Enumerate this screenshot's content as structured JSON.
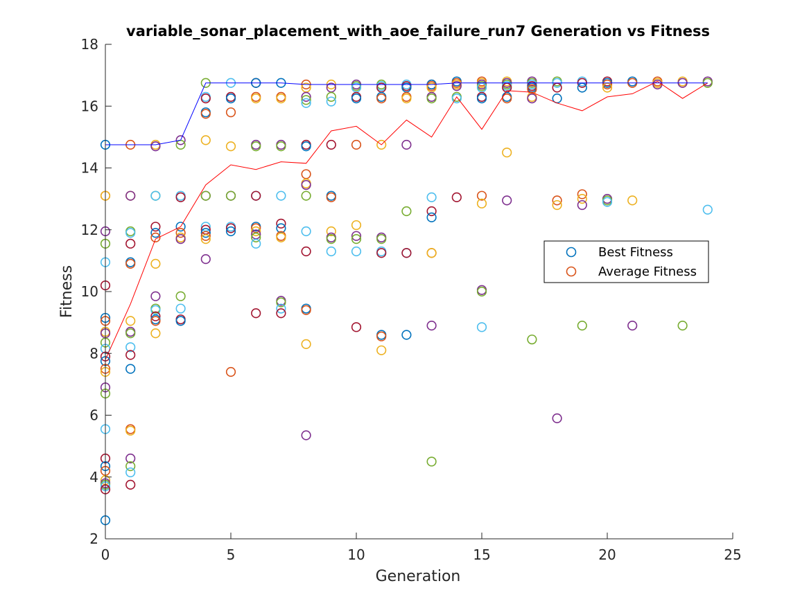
{
  "chart_data": {
    "type": "scatter",
    "title": "variable_sonar_placement_with_aoe_failure_run7 Generation vs Fitness",
    "xlabel": "Generation",
    "ylabel": "Fitness",
    "xlim": [
      0,
      25
    ],
    "ylim": [
      2,
      18
    ],
    "xticks": [
      "0",
      "5",
      "10",
      "15",
      "20",
      "25"
    ],
    "yticks": [
      "2",
      "4",
      "6",
      "8",
      "10",
      "12",
      "14",
      "16",
      "18"
    ],
    "grid": false,
    "legend_position": "right-middle",
    "legend": [
      {
        "label": "Best Fitness",
        "color": "#0072BD"
      },
      {
        "label": "Average Fitness",
        "color": "#D95319"
      }
    ],
    "palette": [
      "#0072BD",
      "#D95319",
      "#EDB120",
      "#7E2F8E",
      "#77AC30",
      "#4DBEEE",
      "#A2142F"
    ],
    "best_line": {
      "color": "#0000FF",
      "x": [
        0,
        1,
        2,
        3,
        4,
        5,
        6,
        7,
        8,
        9,
        10,
        11,
        12,
        13,
        14,
        15,
        16,
        17,
        18,
        19,
        20,
        21,
        22,
        23,
        24
      ],
      "y": [
        14.75,
        14.75,
        14.75,
        14.9,
        16.75,
        16.75,
        16.75,
        16.75,
        16.7,
        16.7,
        16.7,
        16.7,
        16.7,
        16.7,
        16.75,
        16.75,
        16.75,
        16.75,
        16.75,
        16.75,
        16.75,
        16.75,
        16.75,
        16.75,
        16.75
      ]
    },
    "average_line": {
      "color": "#FF0000",
      "x": [
        0,
        1,
        2,
        3,
        4,
        5,
        6,
        7,
        8,
        9,
        10,
        11,
        12,
        13,
        14,
        15,
        16,
        17,
        18,
        19,
        20,
        21,
        22,
        23,
        24
      ],
      "y": [
        7.8,
        9.6,
        11.7,
        12.1,
        13.45,
        14.1,
        13.95,
        14.2,
        14.15,
        15.2,
        15.35,
        14.75,
        15.55,
        15.0,
        16.3,
        15.25,
        16.5,
        16.45,
        16.1,
        15.85,
        16.3,
        16.4,
        16.8,
        16.25,
        16.75
      ]
    },
    "generations": [
      {
        "x": 0,
        "values": [
          14.75,
          13.1,
          13.1,
          11.95,
          11.55,
          10.95,
          10.2,
          9.15,
          9.05,
          8.7,
          8.65,
          8.35,
          8.15,
          7.9,
          7.75,
          7.5,
          7.4,
          6.9,
          6.7,
          5.55,
          4.6,
          4.35,
          4.2,
          3.9,
          3.8,
          3.75,
          3.7,
          3.6,
          2.6
        ]
      },
      {
        "x": 1,
        "values": [
          14.75,
          13.1,
          13.1,
          11.95,
          11.9,
          11.55,
          10.95,
          10.9,
          9.05,
          8.7,
          8.65,
          8.2,
          7.95,
          7.5,
          5.55,
          5.5,
          4.6,
          4.35,
          4.15,
          3.75
        ]
      },
      {
        "x": 2,
        "values": [
          14.75,
          14.7,
          13.1,
          13.1,
          12.1,
          11.9,
          11.75,
          10.9,
          9.85,
          9.45,
          9.4,
          9.2,
          9.1,
          9.05,
          8.65
        ]
      },
      {
        "x": 3,
        "values": [
          14.9,
          14.75,
          13.1,
          13.05,
          12.1,
          11.9,
          11.75,
          11.7,
          9.85,
          9.45,
          9.1,
          9.05
        ]
      },
      {
        "x": 4,
        "values": [
          16.75,
          16.3,
          16.25,
          15.8,
          15.75,
          14.9,
          13.1,
          13.1,
          12.1,
          12.0,
          11.9,
          11.8,
          11.7,
          11.05
        ]
      },
      {
        "x": 5,
        "values": [
          16.75,
          16.3,
          16.25,
          15.8,
          14.7,
          13.1,
          13.1,
          12.1,
          12.05,
          11.95,
          7.4
        ]
      },
      {
        "x": 6,
        "values": [
          16.75,
          16.75,
          16.3,
          16.25,
          14.75,
          14.7,
          13.1,
          13.1,
          12.1,
          12.05,
          11.95,
          11.85,
          11.75,
          11.55,
          9.3
        ]
      },
      {
        "x": 7,
        "values": [
          16.75,
          16.3,
          16.25,
          14.75,
          14.7,
          13.1,
          12.2,
          12.05,
          11.8,
          11.75,
          9.7,
          9.65,
          9.45,
          9.3
        ]
      },
      {
        "x": 8,
        "values": [
          16.7,
          16.6,
          16.3,
          16.2,
          16.1,
          14.75,
          14.7,
          13.8,
          13.5,
          13.45,
          13.1,
          11.95,
          11.3,
          9.45,
          9.4,
          8.3,
          5.35
        ]
      },
      {
        "x": 9,
        "values": [
          16.7,
          16.6,
          16.3,
          16.15,
          14.75,
          13.1,
          13.05,
          11.95,
          11.75,
          11.7,
          11.3
        ]
      },
      {
        "x": 10,
        "values": [
          16.7,
          16.65,
          16.6,
          16.3,
          16.25,
          14.75,
          12.15,
          11.8,
          11.7,
          11.3,
          8.85
        ]
      },
      {
        "x": 11,
        "values": [
          16.7,
          16.65,
          16.6,
          16.3,
          16.25,
          14.75,
          11.75,
          11.7,
          11.3,
          11.25,
          8.6,
          8.55,
          8.1
        ]
      },
      {
        "x": 12,
        "values": [
          16.7,
          16.65,
          16.6,
          16.3,
          16.25,
          14.75,
          12.6,
          11.25,
          11.25,
          8.6
        ]
      },
      {
        "x": 13,
        "values": [
          16.7,
          16.7,
          16.65,
          16.6,
          16.3,
          16.25,
          13.05,
          12.6,
          12.4,
          11.25,
          11.25,
          8.9,
          4.5
        ]
      },
      {
        "x": 14,
        "values": [
          16.8,
          16.75,
          16.7,
          16.65,
          16.3,
          16.25,
          13.05
        ]
      },
      {
        "x": 15,
        "values": [
          16.8,
          16.75,
          16.7,
          16.65,
          16.6,
          16.3,
          16.25,
          13.1,
          12.85,
          10.05,
          10.0,
          8.85
        ]
      },
      {
        "x": 16,
        "values": [
          16.8,
          16.75,
          16.7,
          16.65,
          16.6,
          16.3,
          16.25,
          14.5,
          12.95
        ]
      },
      {
        "x": 17,
        "values": [
          16.8,
          16.75,
          16.7,
          16.65,
          16.6,
          16.55,
          16.3,
          16.25,
          8.45
        ]
      },
      {
        "x": 18,
        "values": [
          16.8,
          16.75,
          16.6,
          16.25,
          12.95,
          12.8,
          5.9
        ]
      },
      {
        "x": 19,
        "values": [
          16.8,
          16.75,
          16.6,
          13.15,
          13.0,
          12.8,
          8.9
        ]
      },
      {
        "x": 20,
        "values": [
          16.8,
          16.75,
          16.7,
          16.6,
          13.0,
          12.95,
          12.9
        ]
      },
      {
        "x": 21,
        "values": [
          16.8,
          16.75,
          12.95,
          8.9
        ]
      },
      {
        "x": 22,
        "values": [
          16.8,
          16.75,
          16.7
        ]
      },
      {
        "x": 23,
        "values": [
          16.8,
          16.75,
          8.9
        ]
      },
      {
        "x": 24,
        "values": [
          16.8,
          16.75,
          12.65
        ]
      }
    ]
  }
}
